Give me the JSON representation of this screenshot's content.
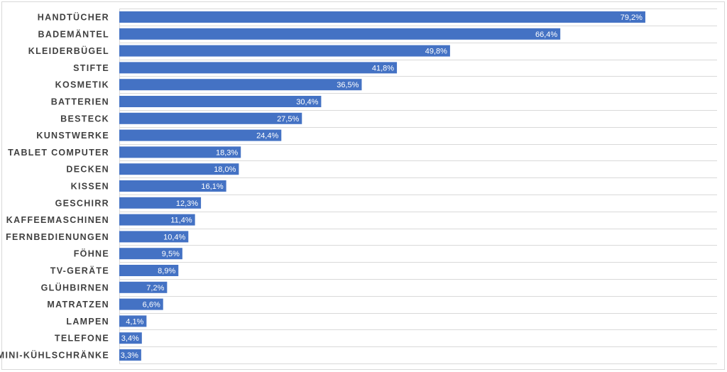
{
  "chart_data": {
    "type": "bar",
    "orientation": "horizontal",
    "categories": [
      "HANDTÜCHER",
      "BADEMÄNTEL",
      "KLEIDERBÜGEL",
      "STIFTE",
      "KOSMETIK",
      "BATTERIEN",
      "BESTECK",
      "KUNSTWERKE",
      "TABLET COMPUTER",
      "DECKEN",
      "KISSEN",
      "GESCHIRR",
      "KAFFEEMASCHINEN",
      "FERNBEDIENUNGEN",
      "FÖHNE",
      "TV-GERÄTE",
      "GLÜHBIRNEN",
      "MATRATZEN",
      "LAMPEN",
      "TELEFONE",
      "MINI-KÜHLSCHRÄNKE"
    ],
    "values": [
      79.2,
      66.4,
      49.8,
      41.8,
      36.5,
      30.4,
      27.5,
      24.4,
      18.3,
      18.0,
      16.1,
      12.3,
      11.4,
      10.4,
      9.5,
      8.9,
      7.2,
      6.6,
      4.1,
      3.4,
      3.3
    ],
    "value_labels": [
      "79,2%",
      "66,4%",
      "49,8%",
      "41,8%",
      "36,5%",
      "30,4%",
      "27,5%",
      "24,4%",
      "18,3%",
      "18,0%",
      "16,1%",
      "12,3%",
      "11,4%",
      "10,4%",
      "9,5%",
      "8,9%",
      "7,2%",
      "6,6%",
      "4,1%",
      "3,4%",
      "3,3%"
    ],
    "title": "",
    "xlabel": "",
    "ylabel": "",
    "xlim": [
      0,
      90
    ],
    "grid": true,
    "legend": "none",
    "bar_color": "#4472c4",
    "label_color": "#404040",
    "value_label_color": "#ffffff"
  }
}
